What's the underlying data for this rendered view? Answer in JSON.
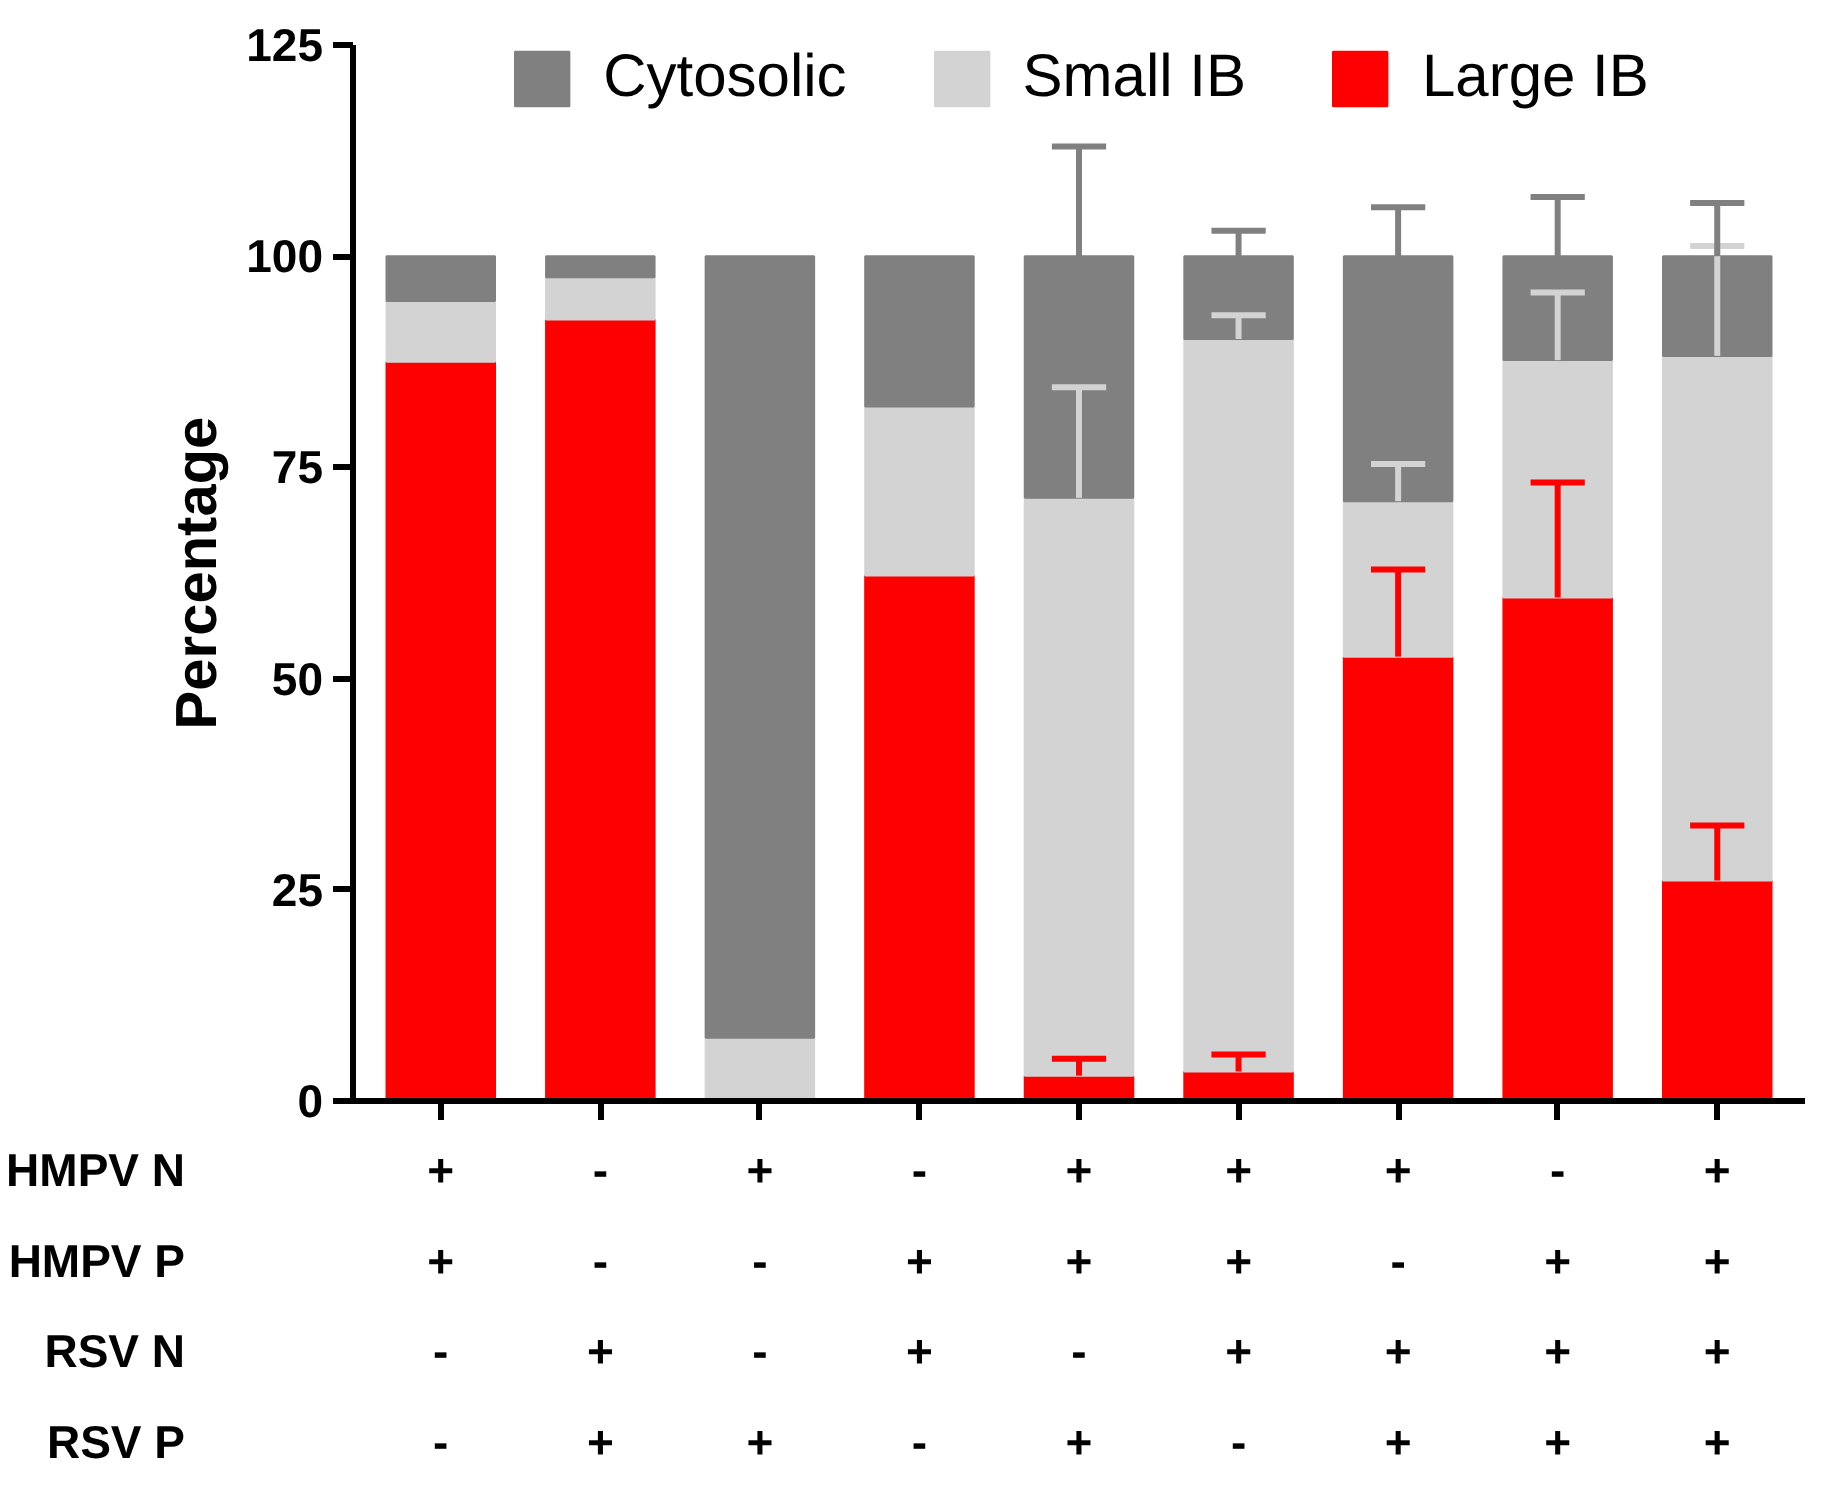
{
  "chart_data": {
    "type": "bar",
    "stacked": true,
    "ylabel": "Percentage",
    "categories": [
      "+\n+\n-\n-",
      "-\n-\n+\n+",
      "+\n-\n-\n+",
      "-\n+\n+\n-",
      "+\n+\n-\n+",
      "+\n+\n+\n-",
      "+\n-\n+\n+",
      "-\n+\n+\n+",
      "+\n+\n+\n+"
    ],
    "annotations": [
      "HMPV N",
      "HMPV P",
      "RSV N",
      "RSV P"
    ],
    "series": [
      {
        "name": "Large IB",
        "color": "#ff0000",
        "values": [
          87.5,
          92.5,
          0,
          62.2,
          3,
          3.5,
          52.6,
          59.6,
          26.1
        ],
        "errors": [
          null,
          null,
          null,
          null,
          [
            3,
            5
          ],
          [
            3.5,
            5.5
          ],
          [
            52.6,
            62.9
          ],
          [
            59.6,
            73.2
          ],
          [
            26.1,
            32.6
          ]
        ]
      },
      {
        "name": "Small IB",
        "color": "#d3d3d3",
        "values": [
          7.2,
          5,
          7.5,
          20,
          68.4,
          86.7,
          18.4,
          28.1,
          62.1
        ],
        "errors": [
          null,
          null,
          null,
          null,
          [
            71.4,
            84.5
          ],
          [
            90.2,
            93
          ],
          [
            71,
            75.4
          ],
          [
            87.7,
            95.7
          ],
          [
            88.2,
            101.2
          ]
        ]
      },
      {
        "name": "Cytosolic",
        "color": "#808080",
        "values": [
          5.3,
          2.5,
          92.5,
          17.8,
          28.6,
          9.8,
          29,
          12.3,
          11.8
        ],
        "errors": [
          null,
          null,
          null,
          null,
          [
            100,
            113
          ],
          [
            100,
            103
          ],
          [
            100,
            105.8
          ],
          [
            100,
            107
          ],
          [
            100,
            106.3
          ]
        ]
      }
    ],
    "ylim": [
      0,
      125
    ],
    "yticks": [
      0,
      25,
      50,
      75,
      100,
      125
    ],
    "grid": false,
    "legend": "top"
  }
}
